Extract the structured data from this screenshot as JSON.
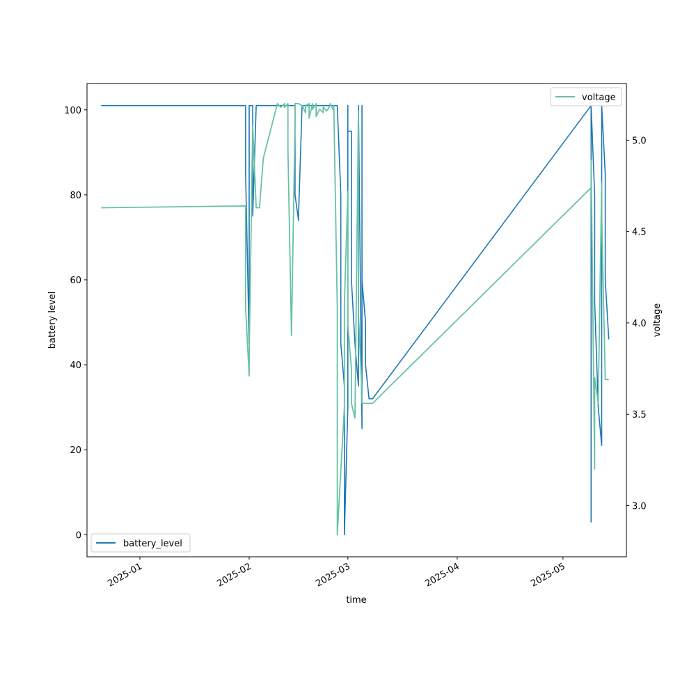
{
  "chart_data": {
    "type": "line",
    "xlabel": "time",
    "ylabel": "battery level",
    "y2label": "voltage",
    "x_ticks": [
      "2025-01",
      "2025-02",
      "2025-03",
      "2025-04",
      "2025-05"
    ],
    "y_ticks": [
      "0",
      "20",
      "40",
      "60",
      "80",
      "100"
    ],
    "y2_ticks": [
      "3.0",
      "3.5",
      "4.0",
      "4.5",
      "5.0"
    ],
    "x_range": [
      "2024-12-17",
      "2025-05-19"
    ],
    "ylim": [
      -5.2,
      106.2
    ],
    "y2lim": [
      2.72,
      5.31
    ],
    "grid": false,
    "series": [
      {
        "name": "battery_level",
        "axis": "left",
        "color": "#1f77b4",
        "legend_position": "lower-left",
        "x": [
          "2024-12-21",
          "2025-01-31",
          "2025-01-31",
          "2025-01-31",
          "2025-02-01",
          "2025-02-01",
          "2025-02-02",
          "2025-02-02",
          "2025-02-03",
          "2025-02-14",
          "2025-02-14",
          "2025-02-15",
          "2025-02-15",
          "2025-02-16",
          "2025-02-16",
          "2025-02-17",
          "2025-02-26",
          "2025-02-27",
          "2025-02-27",
          "2025-02-28",
          "2025-02-28",
          "2025-03-01",
          "2025-03-01",
          "2025-03-01",
          "2025-03-01",
          "2025-03-02",
          "2025-03-02",
          "2025-03-02",
          "2025-03-03",
          "2025-03-04",
          "2025-03-04",
          "2025-03-04",
          "2025-03-05",
          "2025-03-05",
          "2025-03-05",
          "2025-03-05",
          "2025-03-05",
          "2025-03-06",
          "2025-03-06",
          "2025-03-07",
          "2025-03-07",
          "2025-03-08",
          "2025-05-09",
          "2025-05-09",
          "2025-05-09",
          "2025-05-10",
          "2025-05-10",
          "2025-05-11",
          "2025-05-12",
          "2025-05-12",
          "2025-05-12",
          "2025-05-13",
          "2025-05-13",
          "2025-05-14",
          "2025-05-14"
        ],
        "y": [
          101,
          101,
          91,
          85,
          45,
          101,
          101,
          75,
          101,
          101,
          80,
          74,
          75,
          101,
          101,
          101,
          101,
          80,
          45,
          35,
          0,
          30,
          101,
          82,
          95,
          95,
          75,
          60,
          45,
          35,
          101,
          101,
          25,
          101,
          101,
          80,
          60,
          50,
          40,
          32,
          32,
          32,
          101,
          3,
          101,
          80,
          55,
          30,
          21,
          101,
          101,
          85,
          60,
          46,
          46
        ]
      },
      {
        "name": "voltage",
        "axis": "right",
        "color": "#66c2a5",
        "legend_position": "upper-right",
        "x": [
          "2024-12-21",
          "2025-01-31",
          "2025-01-31",
          "2025-02-01",
          "2025-02-01",
          "2025-02-02",
          "2025-02-03",
          "2025-02-04",
          "2025-02-04",
          "2025-02-05",
          "2025-02-09",
          "2025-02-10",
          "2025-02-11",
          "2025-02-11",
          "2025-02-12",
          "2025-02-12",
          "2025-02-13",
          "2025-02-14",
          "2025-02-14",
          "2025-02-15",
          "2025-02-16",
          "2025-02-17",
          "2025-02-17",
          "2025-02-18",
          "2025-02-18",
          "2025-02-19",
          "2025-02-19",
          "2025-02-20",
          "2025-02-20",
          "2025-02-21",
          "2025-02-22",
          "2025-02-22",
          "2025-02-23",
          "2025-02-24",
          "2025-02-24",
          "2025-02-25",
          "2025-02-25",
          "2025-02-26",
          "2025-02-26",
          "2025-02-26",
          "2025-02-28",
          "2025-02-28",
          "2025-03-01",
          "2025-03-01",
          "2025-03-02",
          "2025-03-02",
          "2025-03-03",
          "2025-03-04",
          "2025-03-04",
          "2025-03-05",
          "2025-03-05",
          "2025-03-06",
          "2025-03-08",
          "2025-05-09",
          "2025-05-09",
          "2025-05-10",
          "2025-05-10",
          "2025-05-11",
          "2025-05-12",
          "2025-05-12",
          "2025-05-13",
          "2025-05-14"
        ],
        "y": [
          4.63,
          4.64,
          4.08,
          3.71,
          3.82,
          5.08,
          4.63,
          4.63,
          4.65,
          4.9,
          5.2,
          5.18,
          5.2,
          5.18,
          5.2,
          4.95,
          3.93,
          5.1,
          5.2,
          5.2,
          5.19,
          5.15,
          5.19,
          5.2,
          5.12,
          5.2,
          5.17,
          5.2,
          5.13,
          5.17,
          5.15,
          5.18,
          5.16,
          5.19,
          5.2,
          5.16,
          5.19,
          4.08,
          3.56,
          2.84,
          3.54,
          4.1,
          4.72,
          3.99,
          3.75,
          3.56,
          3.48,
          5.16,
          4.05,
          3.62,
          3.56,
          3.56,
          3.56,
          4.74,
          4.89,
          3.2,
          3.7,
          3.56,
          4.77,
          4.6,
          3.69,
          3.69
        ]
      }
    ]
  }
}
